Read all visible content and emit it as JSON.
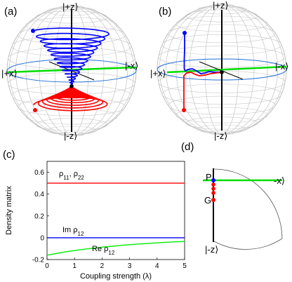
{
  "panels": {
    "a": {
      "label": "(a)",
      "axis_labels": {
        "plus_z": "|+z⟩",
        "minus_z": "|-z⟩",
        "plus_x": "|+x⟩",
        "minus_x": "|-x⟩"
      }
    },
    "b": {
      "label": "(b)",
      "axis_labels": {
        "plus_z": "|+z⟩",
        "minus_z": "|-z⟩",
        "plus_x": "|+x⟩",
        "minus_x": "|-x⟩"
      }
    },
    "c": {
      "label": "(c)"
    },
    "d": {
      "label": "(d)",
      "minus_x": "-x⟩",
      "minus_z": "|-z⟩",
      "point_p": "P",
      "point_g": "G"
    }
  },
  "colors": {
    "upper_trajectory": "#0000ff",
    "lower_trajectory": "#ff0000",
    "x_axis_line": "#00dd00",
    "equator": "#1f6fd6",
    "sphere_grid": "#c8c8c8"
  },
  "chart_data": {
    "type": "line",
    "xlabel": "Coupling strength (λ)",
    "ylabel": "Density matrix",
    "xlim": [
      0,
      5
    ],
    "ylim": [
      -0.2,
      0.7
    ],
    "xticks": [
      0,
      1,
      2,
      3,
      4,
      5
    ],
    "yticks": [
      -0.2,
      0,
      0.2,
      0.4,
      0.6
    ],
    "ytick_labels": [
      "-0.2",
      "0",
      "0.2",
      "0.4",
      "0.6"
    ],
    "grid": false,
    "x": [
      0,
      0.25,
      0.5,
      0.75,
      1,
      1.25,
      1.5,
      1.75,
      2,
      2.25,
      2.5,
      2.75,
      3,
      3.25,
      3.5,
      3.75,
      4,
      4.25,
      4.5,
      4.75,
      5
    ],
    "series": [
      {
        "label": "ρ11, ρ22",
        "color": "#ff0000",
        "values": [
          0.5,
          0.5,
          0.5,
          0.5,
          0.5,
          0.5,
          0.5,
          0.5,
          0.5,
          0.5,
          0.5,
          0.5,
          0.5,
          0.5,
          0.5,
          0.5,
          0.5,
          0.5,
          0.5,
          0.5,
          0.5
        ]
      },
      {
        "label": "Im ρ12",
        "color": "#0000ff",
        "values": [
          0,
          0,
          0,
          0,
          0,
          0,
          0,
          0,
          0,
          0,
          0,
          0,
          0,
          0,
          0,
          0,
          0,
          0,
          0,
          0,
          0
        ]
      },
      {
        "label": "Re ρ12",
        "color": "#00ee00",
        "values": [
          -0.16,
          -0.148,
          -0.137,
          -0.127,
          -0.118,
          -0.109,
          -0.101,
          -0.094,
          -0.087,
          -0.081,
          -0.075,
          -0.069,
          -0.064,
          -0.059,
          -0.055,
          -0.051,
          -0.047,
          -0.043,
          -0.04,
          -0.037,
          -0.034
        ]
      }
    ]
  }
}
